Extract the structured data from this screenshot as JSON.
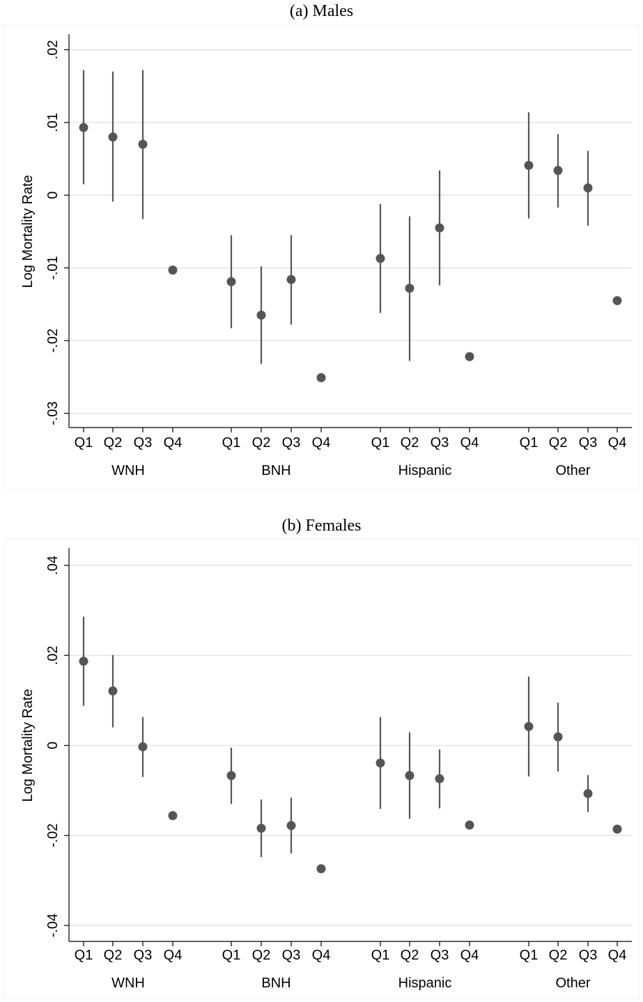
{
  "chart_data": [
    {
      "type": "scatter",
      "title": "(a) Males",
      "ylabel": "Log Mortality Rate",
      "xlabel": "",
      "ylim": [
        -0.031,
        0.021
      ],
      "yticks": [
        0.02,
        0.01,
        0,
        -0.01,
        -0.02,
        -0.03
      ],
      "ytick_labels": [
        ".02",
        ".01",
        "0",
        "-.01",
        "-.02",
        "-.03"
      ],
      "grid": true,
      "groups": [
        "WNH",
        "BNH",
        "Hispanic",
        "Other"
      ],
      "categories": [
        "Q1",
        "Q2",
        "Q3",
        "Q4"
      ],
      "series": [
        {
          "group": "WNH",
          "points": [
            {
              "cat": "Q1",
              "y": 0.0093,
              "lo": 0.0015,
              "hi": 0.0172
            },
            {
              "cat": "Q2",
              "y": 0.008,
              "lo": -0.0009,
              "hi": 0.017
            },
            {
              "cat": "Q3",
              "y": 0.007,
              "lo": -0.0033,
              "hi": 0.0172
            },
            {
              "cat": "Q4",
              "y": -0.0103,
              "lo": null,
              "hi": null
            }
          ]
        },
        {
          "group": "BNH",
          "points": [
            {
              "cat": "Q1",
              "y": -0.0119,
              "lo": -0.0183,
              "hi": -0.0055
            },
            {
              "cat": "Q2",
              "y": -0.0165,
              "lo": -0.0232,
              "hi": -0.0098
            },
            {
              "cat": "Q3",
              "y": -0.0116,
              "lo": -0.0178,
              "hi": -0.0055
            },
            {
              "cat": "Q4",
              "y": -0.0251,
              "lo": null,
              "hi": null
            }
          ]
        },
        {
          "group": "Hispanic",
          "points": [
            {
              "cat": "Q1",
              "y": -0.0087,
              "lo": -0.0162,
              "hi": -0.0012
            },
            {
              "cat": "Q2",
              "y": -0.0128,
              "lo": -0.0228,
              "hi": -0.0029
            },
            {
              "cat": "Q3",
              "y": -0.0045,
              "lo": -0.0124,
              "hi": 0.0034
            },
            {
              "cat": "Q4",
              "y": -0.0222,
              "lo": null,
              "hi": null
            }
          ]
        },
        {
          "group": "Other",
          "points": [
            {
              "cat": "Q1",
              "y": 0.0041,
              "lo": -0.0032,
              "hi": 0.0114
            },
            {
              "cat": "Q2",
              "y": 0.0034,
              "lo": -0.0017,
              "hi": 0.0084
            },
            {
              "cat": "Q3",
              "y": 0.001,
              "lo": -0.0042,
              "hi": 0.0061
            },
            {
              "cat": "Q4",
              "y": -0.0145,
              "lo": null,
              "hi": null
            }
          ]
        }
      ]
    },
    {
      "type": "scatter",
      "title": "(b) Females",
      "ylabel": "Log Mortality Rate",
      "xlabel": "",
      "ylim": [
        -0.042,
        0.042
      ],
      "yticks": [
        0.04,
        0.02,
        0,
        -0.02,
        -0.04
      ],
      "ytick_labels": [
        ".04",
        ".02",
        "0",
        "-.02",
        "-.04"
      ],
      "grid": true,
      "groups": [
        "WNH",
        "BNH",
        "Hispanic",
        "Other"
      ],
      "categories": [
        "Q1",
        "Q2",
        "Q3",
        "Q4"
      ],
      "series": [
        {
          "group": "WNH",
          "points": [
            {
              "cat": "Q1",
              "y": 0.0187,
              "lo": 0.0088,
              "hi": 0.0286
            },
            {
              "cat": "Q2",
              "y": 0.0121,
              "lo": 0.004,
              "hi": 0.0201
            },
            {
              "cat": "Q3",
              "y": -0.0003,
              "lo": -0.007,
              "hi": 0.0063
            },
            {
              "cat": "Q4",
              "y": -0.0156,
              "lo": null,
              "hi": null
            }
          ]
        },
        {
          "group": "BNH",
          "points": [
            {
              "cat": "Q1",
              "y": -0.0067,
              "lo": -0.013,
              "hi": -0.0005
            },
            {
              "cat": "Q2",
              "y": -0.0184,
              "lo": -0.0248,
              "hi": -0.012
            },
            {
              "cat": "Q3",
              "y": -0.0178,
              "lo": -0.024,
              "hi": -0.0116
            },
            {
              "cat": "Q4",
              "y": -0.0274,
              "lo": null,
              "hi": null
            }
          ]
        },
        {
          "group": "Hispanic",
          "points": [
            {
              "cat": "Q1",
              "y": -0.0039,
              "lo": -0.0141,
              "hi": 0.0063
            },
            {
              "cat": "Q2",
              "y": -0.0067,
              "lo": -0.0163,
              "hi": 0.0029
            },
            {
              "cat": "Q3",
              "y": -0.0074,
              "lo": -0.014,
              "hi": -0.0009
            },
            {
              "cat": "Q4",
              "y": -0.0177,
              "lo": null,
              "hi": null
            }
          ]
        },
        {
          "group": "Other",
          "points": [
            {
              "cat": "Q1",
              "y": 0.0042,
              "lo": -0.0069,
              "hi": 0.0153
            },
            {
              "cat": "Q2",
              "y": 0.0019,
              "lo": -0.0058,
              "hi": 0.0095
            },
            {
              "cat": "Q3",
              "y": -0.0107,
              "lo": -0.0148,
              "hi": -0.0066
            },
            {
              "cat": "Q4",
              "y": -0.0186,
              "lo": null,
              "hi": null
            }
          ]
        }
      ]
    }
  ],
  "colors": {
    "marker": "#555555",
    "errorbar": "#555555",
    "grid": "#e4e4e4",
    "axis": "#000000"
  }
}
